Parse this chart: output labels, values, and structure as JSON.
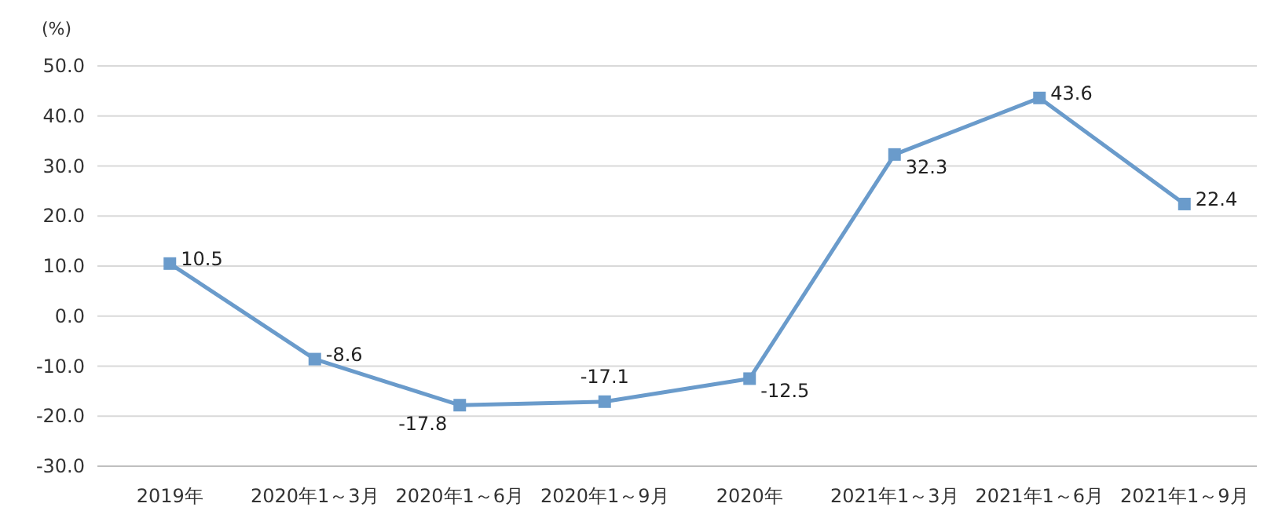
{
  "chart_data": {
    "type": "line",
    "ylabel": "(%)",
    "categories": [
      "2019年",
      "2020年1～3月",
      "2020年1～6月",
      "2020年1～9月",
      "2020年",
      "2021年1～3月",
      "2021年1～6月",
      "2021年1～9月"
    ],
    "series": [
      {
        "color": "#6a9bcb",
        "values": [
          10.5,
          -8.6,
          -17.8,
          -17.1,
          -12.5,
          32.3,
          43.6,
          22.4
        ]
      }
    ],
    "ylim": [
      -30,
      50
    ],
    "yticks": [
      {
        "value": -30,
        "label": "-30.0"
      },
      {
        "value": -20,
        "label": "-20.0"
      },
      {
        "value": -10,
        "label": "-10.0"
      },
      {
        "value": 0,
        "label": "0.0"
      },
      {
        "value": 10,
        "label": "10.0"
      },
      {
        "value": 20,
        "label": "20.0"
      },
      {
        "value": 30,
        "label": "30.0"
      },
      {
        "value": 40,
        "label": "40.0"
      },
      {
        "value": 50,
        "label": "50.0"
      }
    ],
    "grid": "y",
    "marker": "square",
    "line_style": "solid",
    "data_labels": true
  }
}
